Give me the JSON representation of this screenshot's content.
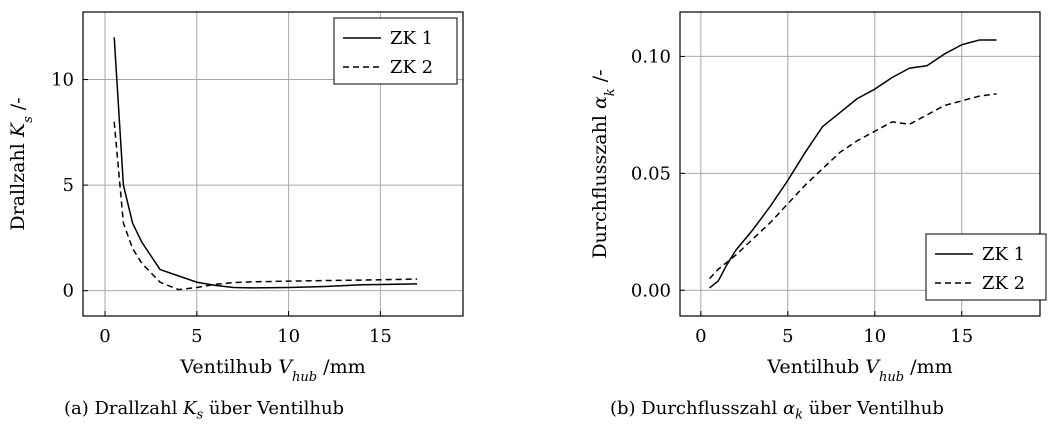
{
  "chart_data": [
    {
      "type": "line",
      "ylabel": "Drallzahl K_s /-",
      "xlabel": "Ventilhub V_hub /mm",
      "caption": "(a) Drallzahl K_s über Ventilhub",
      "xlim": [
        -1.2,
        19.5
      ],
      "ylim": [
        -1.2,
        13.2
      ],
      "xticks": [
        "0",
        "5",
        "10",
        "15"
      ],
      "yticks": [
        "0",
        "5",
        "10"
      ],
      "xtick_values": [
        0,
        5,
        10,
        15
      ],
      "ytick_values": [
        0,
        5,
        10
      ],
      "grid": true,
      "legend_position": "top-right",
      "series": [
        {
          "name": "ZK 1",
          "style": "solid",
          "x": [
            0.5,
            1,
            1.5,
            2,
            3,
            4,
            5,
            6,
            7,
            8,
            10,
            12,
            14,
            17
          ],
          "y": [
            12.0,
            5.0,
            3.2,
            2.3,
            1.0,
            0.7,
            0.4,
            0.25,
            0.15,
            0.13,
            0.15,
            0.2,
            0.28,
            0.32
          ]
        },
        {
          "name": "ZK 2",
          "style": "dashed",
          "x": [
            0.5,
            1,
            1.5,
            2,
            3,
            4,
            5,
            6,
            7,
            8,
            10,
            12,
            14,
            17
          ],
          "y": [
            8.0,
            3.2,
            2.0,
            1.3,
            0.4,
            0.05,
            0.15,
            0.3,
            0.38,
            0.42,
            0.45,
            0.48,
            0.5,
            0.55
          ]
        }
      ]
    },
    {
      "type": "line",
      "ylabel": "Durchflusszahl α_k /-",
      "xlabel": "Ventilhub V_hub /mm",
      "caption": "(b) Durchflusszahl α_k über Ventilhub",
      "xlim": [
        -1.2,
        19.5
      ],
      "ylim": [
        -0.011,
        0.119
      ],
      "xticks": [
        "0",
        "5",
        "10",
        "15"
      ],
      "yticks": [
        "0.00",
        "0.05",
        "0.10"
      ],
      "xtick_values": [
        0,
        5,
        10,
        15
      ],
      "ytick_values": [
        0,
        0.05,
        0.1
      ],
      "grid": true,
      "legend_position": "bottom-right",
      "series": [
        {
          "name": "ZK 1",
          "style": "solid",
          "x": [
            0.5,
            1,
            1.5,
            2,
            3,
            4,
            5,
            6,
            7,
            8,
            9,
            10,
            11,
            12,
            13,
            14,
            15,
            16,
            17
          ],
          "y": [
            0.001,
            0.004,
            0.011,
            0.017,
            0.026,
            0.036,
            0.047,
            0.059,
            0.07,
            0.076,
            0.082,
            0.086,
            0.091,
            0.095,
            0.096,
            0.101,
            0.105,
            0.107,
            0.107
          ]
        },
        {
          "name": "ZK 2",
          "style": "dashed",
          "x": [
            0.5,
            1,
            1.5,
            2,
            3,
            4,
            5,
            6,
            7,
            8,
            9,
            10,
            11,
            12,
            13,
            14,
            15,
            16,
            17
          ],
          "y": [
            0.005,
            0.009,
            0.012,
            0.015,
            0.022,
            0.029,
            0.037,
            0.045,
            0.052,
            0.059,
            0.064,
            0.068,
            0.072,
            0.071,
            0.075,
            0.079,
            0.081,
            0.083,
            0.084
          ]
        }
      ]
    }
  ]
}
